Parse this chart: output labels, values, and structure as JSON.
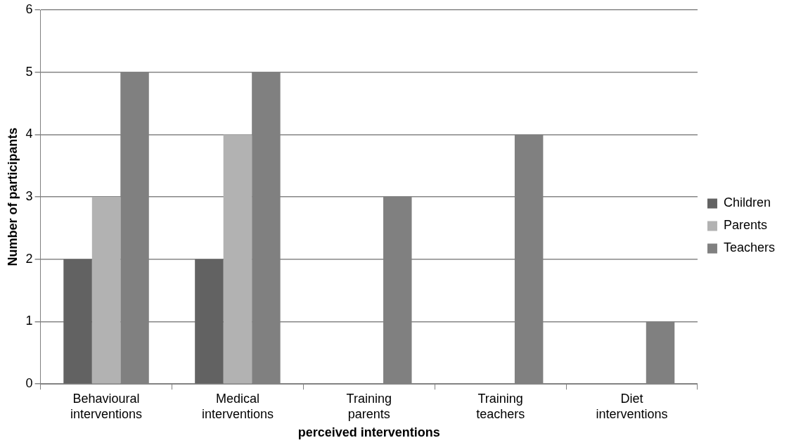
{
  "chart_data": {
    "type": "bar",
    "xlabel": "perceived interventions",
    "ylabel": "Number of participants",
    "categories": [
      "Behavioural interventions",
      "Medical interventions",
      "Training parents",
      "Training teachers",
      "Diet interventions"
    ],
    "series": [
      {
        "name": "Children",
        "color": "#626262",
        "values": [
          2,
          2,
          0,
          0,
          0
        ]
      },
      {
        "name": "Parents",
        "color": "#b2b2b2",
        "values": [
          3,
          4,
          0,
          0,
          0
        ]
      },
      {
        "name": "Teachers",
        "color": "#808080",
        "values": [
          5,
          5,
          3,
          4,
          1
        ]
      }
    ],
    "ylim": [
      0,
      6
    ],
    "yticks": [
      0,
      1,
      2,
      3,
      4,
      5,
      6
    ],
    "grid": "y",
    "legend": "right"
  }
}
